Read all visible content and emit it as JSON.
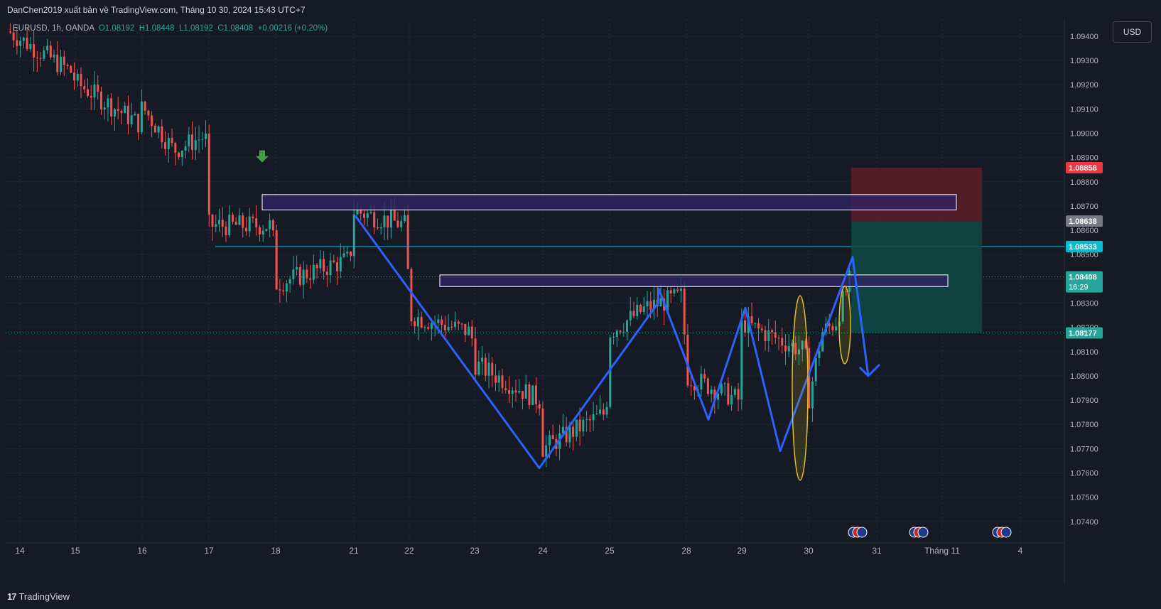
{
  "header": {
    "publisher": "DanChen2019 xuất bản về TradingView.com, Tháng 10 30, 2024 15:43 UTC+7"
  },
  "legend": {
    "symbol": "EURUSD, 1h, OANDA",
    "open": "O1.08192",
    "high": "H1.08448",
    "low": "L1.08192",
    "close": "C1.08408",
    "change": "+0.00216 (+0.20%)"
  },
  "currency_button": "USD",
  "brand": "TradingView",
  "colors": {
    "background": "#161a25",
    "up": "#26a69a",
    "down": "#ef5350",
    "zigzag": "#2962ff",
    "zone_fill": "#2f2463",
    "stop_zone": "#5c1f2a",
    "target_zone": "#0f4a47",
    "highlight": "#e1c019"
  },
  "chart_data": {
    "type": "candlestick",
    "symbol": "EURUSD",
    "timeframe": "1h",
    "x_tick_labels": [
      "14",
      "15",
      "16",
      "17",
      "18",
      "21",
      "22",
      "23",
      "24",
      "25",
      "28",
      "29",
      "30",
      "31",
      "Tháng 11",
      "4"
    ],
    "y_tick_labels": [
      "1.09400",
      "1.09300",
      "1.09200",
      "1.09100",
      "1.09000",
      "1.08900",
      "1.08800",
      "1.08700",
      "1.08600",
      "1.08500",
      "1.08400",
      "1.08300",
      "1.08200",
      "1.08100",
      "1.08000",
      "1.07900",
      "1.07800",
      "1.07700",
      "1.07600",
      "1.07500",
      "1.07400"
    ],
    "ylim": [
      1.0737,
      1.0947
    ],
    "grid": true,
    "ohlc_anchors": [
      {
        "day": "14",
        "price": 1.0942
      },
      {
        "day": "14",
        "price": 1.0925
      },
      {
        "day": "15",
        "price": 1.0921
      },
      {
        "day": "15",
        "price": 1.0904
      },
      {
        "day": "16",
        "price": 1.0911
      },
      {
        "day": "16",
        "price": 1.0893
      },
      {
        "day": "16",
        "price": 1.0899
      },
      {
        "day": "17",
        "price": 1.0862
      },
      {
        "day": "17",
        "price": 1.0862
      },
      {
        "day": "18",
        "price": 1.0838
      },
      {
        "day": "18",
        "price": 1.0848
      },
      {
        "day": "21",
        "price": 1.0868
      },
      {
        "day": "21",
        "price": 1.0862
      },
      {
        "day": "22",
        "price": 1.0825
      },
      {
        "day": "22",
        "price": 1.0818
      },
      {
        "day": "23",
        "price": 1.0805
      },
      {
        "day": "23",
        "price": 1.079
      },
      {
        "day": "24",
        "price": 1.077
      },
      {
        "day": "24",
        "price": 1.0785
      },
      {
        "day": "25",
        "price": 1.0818
      },
      {
        "day": "25",
        "price": 1.0828
      },
      {
        "day": "25",
        "price": 1.0833
      },
      {
        "day": "28",
        "price": 1.08
      },
      {
        "day": "28",
        "price": 1.079
      },
      {
        "day": "29",
        "price": 1.0822
      },
      {
        "day": "29",
        "price": 1.081
      },
      {
        "day": "30",
        "price": 1.079
      },
      {
        "day": "30",
        "price": 1.0818
      },
      {
        "day": "30",
        "price": 1.0822
      },
      {
        "day": "30",
        "price": 1.0841
      }
    ],
    "price_tags": [
      {
        "label": "1.08858",
        "price": 1.08858,
        "color": "#f23645"
      },
      {
        "label": "1.08638",
        "price": 1.08638,
        "color": "#787b86"
      },
      {
        "label": "1.08533",
        "price": 1.08533,
        "color": "#00bcd4"
      },
      {
        "label": "1.08408",
        "sub": "16:29",
        "price": 1.08408,
        "color": "#26a69a"
      },
      {
        "label": "1.08177",
        "price": 1.08177,
        "color": "#26a69a"
      }
    ],
    "zones": [
      {
        "name": "upper-resistance-zone",
        "from_day": "18",
        "to_day": "31",
        "top": 1.08747,
        "bottom": 1.08684
      },
      {
        "name": "lower-resistance-zone",
        "from_day": "22",
        "to_day": "31",
        "top": 1.08416,
        "bottom": 1.08368
      }
    ],
    "trade_box": {
      "stop": 1.08858,
      "entry": 1.08638,
      "target": 1.08177
    },
    "horizontal_line": 1.08533,
    "zigzag": [
      {
        "day": "21",
        "price": 1.0866
      },
      {
        "day": "24",
        "price": 1.0762
      },
      {
        "day": "25",
        "price": 1.083
      },
      {
        "day": "25",
        "price": 1.0836
      },
      {
        "day": "28",
        "price": 1.0782
      },
      {
        "day": "29",
        "price": 1.0828
      },
      {
        "day": "29",
        "price": 1.0769
      },
      {
        "day": "30",
        "price": 1.0849
      },
      {
        "day": "30",
        "price": 1.08
      }
    ]
  }
}
